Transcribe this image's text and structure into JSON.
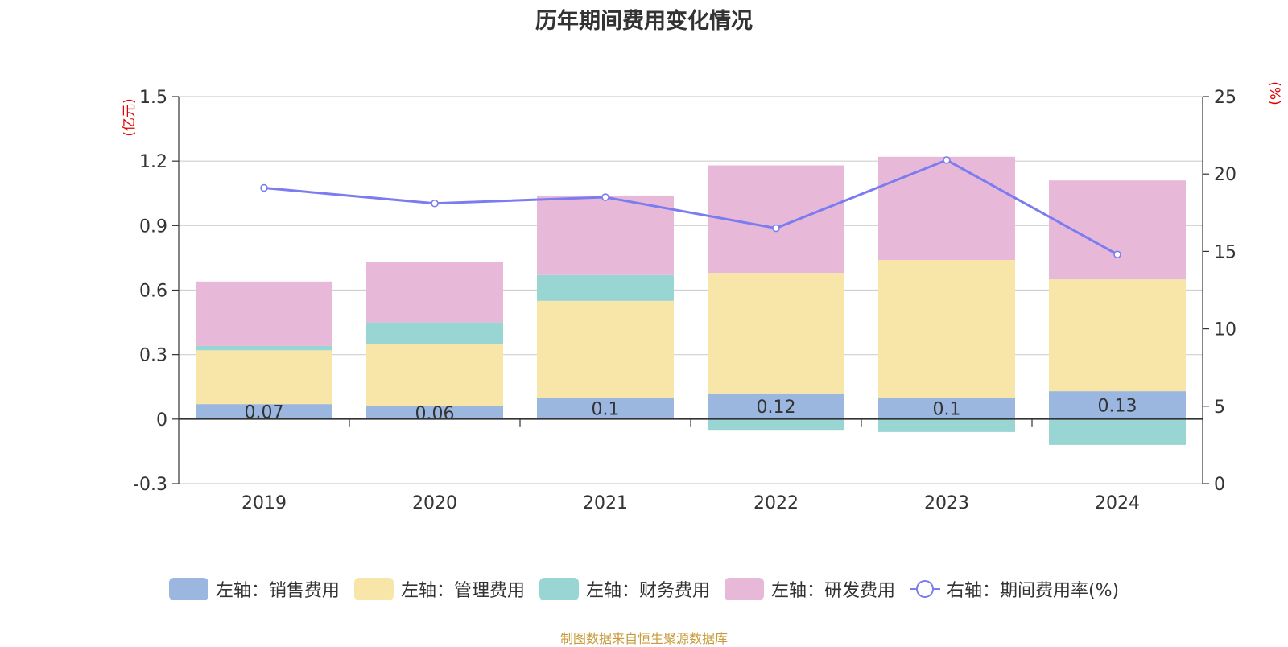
{
  "chart_data": {
    "type": "bar",
    "title": "历年期间费用变化情况",
    "categories": [
      "2019",
      "2020",
      "2021",
      "2022",
      "2023",
      "2024"
    ],
    "left_axis": {
      "unit": "(亿元)",
      "ylim": [
        -0.3,
        1.5
      ],
      "ticks": [
        "1.5",
        "1.2",
        "0.9",
        "0.6",
        "0.3",
        "0",
        "-0.3"
      ]
    },
    "right_axis": {
      "unit": "(%)",
      "ylim": [
        0,
        25
      ],
      "ticks": [
        "25",
        "20",
        "15",
        "10",
        "5",
        "0"
      ]
    },
    "grid": true,
    "stacked": true,
    "series": [
      {
        "name": "左轴：销售费用",
        "color": "#9bb7e0",
        "axis": "left",
        "values": [
          0.07,
          0.06,
          0.1,
          0.12,
          0.1,
          0.13
        ],
        "labels": [
          "0.07",
          "0.06",
          "0.1",
          "0.12",
          "0.1",
          "0.13"
        ]
      },
      {
        "name": "左轴：管理费用",
        "color": "#f8e6a8",
        "axis": "left",
        "values": [
          0.25,
          0.29,
          0.45,
          0.56,
          0.64,
          0.52
        ]
      },
      {
        "name": "左轴：财务费用",
        "color": "#98d5d3",
        "axis": "left",
        "values": [
          0.02,
          0.1,
          0.12,
          -0.05,
          -0.06,
          -0.12
        ]
      },
      {
        "name": "左轴：研发费用",
        "color": "#e8b8d8",
        "axis": "left",
        "values": [
          0.3,
          0.28,
          0.37,
          0.5,
          0.48,
          0.46
        ]
      },
      {
        "name": "右轴：期间费用率(%)",
        "color": "#7b7cef",
        "axis": "right",
        "type": "line",
        "values": [
          19.1,
          18.1,
          18.5,
          16.5,
          20.9,
          14.8
        ]
      }
    ],
    "legend_position": "bottom"
  },
  "source_note": "制图数据来自恒生聚源数据库"
}
